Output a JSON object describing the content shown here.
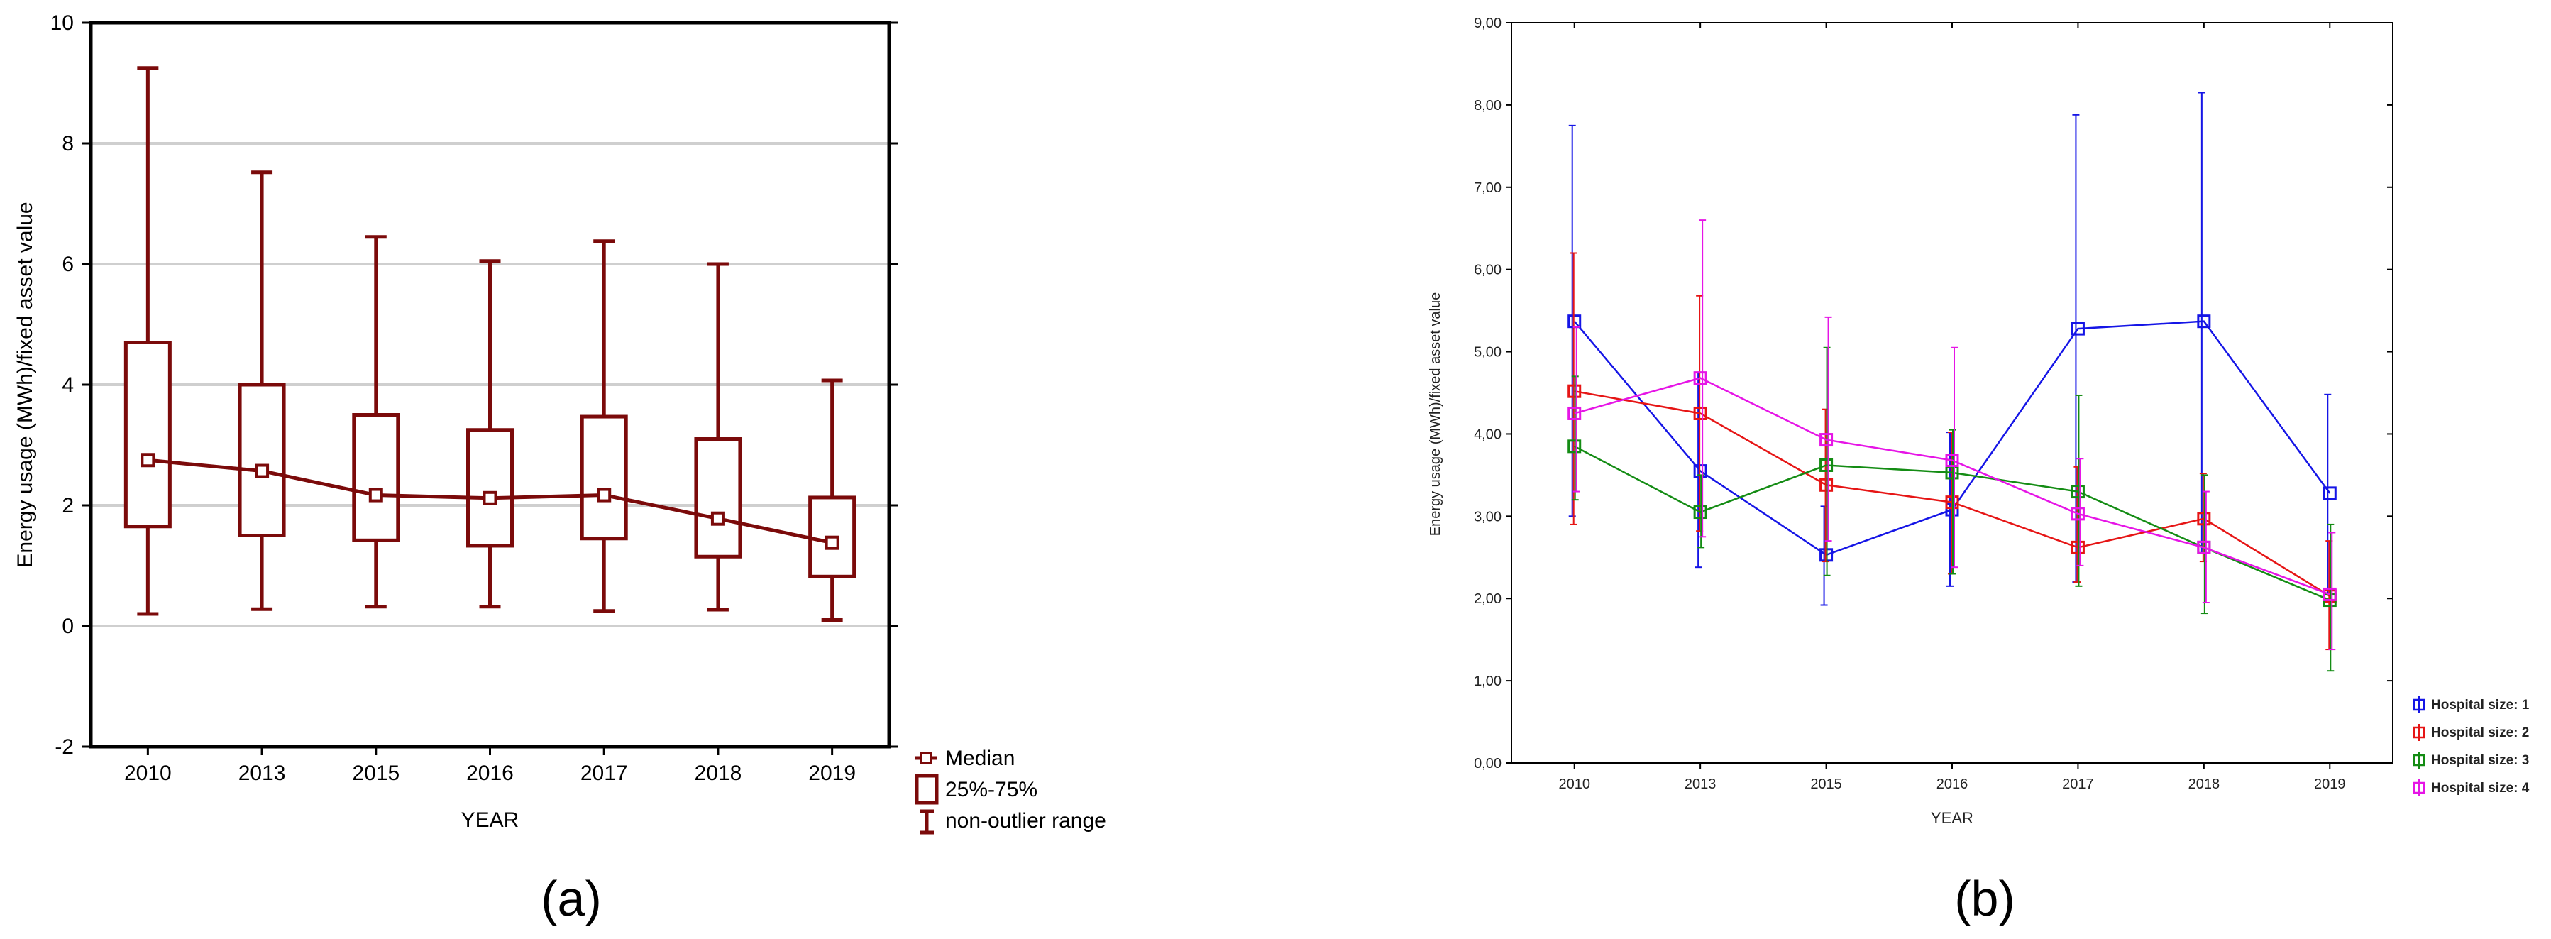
{
  "chart_data": [
    {
      "type": "box",
      "panel_label": "(a)",
      "title": "",
      "xlabel": "YEAR",
      "ylabel": "Energy usage (MWh)/fixed asset value",
      "ylim": [
        -2,
        10
      ],
      "yticks": [
        -2,
        0,
        2,
        4,
        6,
        8,
        10
      ],
      "ytick_labels": [
        "-2",
        "0",
        "2",
        "4",
        "6",
        "8",
        "10"
      ],
      "grid": true,
      "categories": [
        "2010",
        "2013",
        "2015",
        "2016",
        "2017",
        "2018",
        "2019"
      ],
      "median": [
        2.75,
        2.57,
        2.17,
        2.12,
        2.17,
        1.78,
        1.38
      ],
      "q1": [
        1.65,
        1.5,
        1.42,
        1.33,
        1.45,
        1.15,
        0.82
      ],
      "q3": [
        4.7,
        4.0,
        3.5,
        3.25,
        3.47,
        3.1,
        2.13
      ],
      "whisker_low": [
        0.2,
        0.28,
        0.32,
        0.32,
        0.25,
        0.27,
        0.1
      ],
      "whisker_high": [
        9.25,
        7.52,
        6.45,
        6.05,
        6.38,
        6.0,
        4.07
      ],
      "color": "#7B0A0A",
      "legend": {
        "position": "right-bottom",
        "entries": [
          "Median",
          "25%-75%",
          "non-outlier range"
        ]
      }
    },
    {
      "type": "line",
      "panel_label": "(b)",
      "title": "",
      "xlabel": "YEAR",
      "ylabel": "Energy usage (MWh)/fixed asset value",
      "ylim": [
        0,
        9
      ],
      "yticks": [
        0,
        1,
        2,
        3,
        4,
        5,
        6,
        7,
        8,
        9
      ],
      "ytick_labels": [
        "0,00",
        "1,00",
        "2,00",
        "3,00",
        "4,00",
        "5,00",
        "6,00",
        "7,00",
        "8,00",
        "9,00"
      ],
      "grid": false,
      "categories": [
        "2010",
        "2013",
        "2015",
        "2016",
        "2017",
        "2018",
        "2019"
      ],
      "legend": {
        "position": "right-bottom"
      },
      "series": [
        {
          "name": "Hospital size: 1",
          "color": "#1515E6",
          "values": [
            5.37,
            3.55,
            2.53,
            3.08,
            5.28,
            5.37,
            3.28
          ],
          "err_low": [
            3.0,
            2.38,
            1.92,
            2.15,
            2.2,
            2.55,
            2.05
          ],
          "err_high": [
            7.75,
            4.75,
            3.12,
            4.02,
            7.88,
            8.15,
            4.48
          ]
        },
        {
          "name": "Hospital size: 2",
          "color": "#E61515",
          "values": [
            4.52,
            4.25,
            3.38,
            3.17,
            2.62,
            2.97,
            2.03
          ],
          "err_low": [
            2.9,
            2.82,
            2.45,
            2.3,
            2.2,
            2.45,
            1.38
          ],
          "err_high": [
            6.2,
            5.68,
            4.3,
            4.02,
            3.6,
            3.52,
            2.7
          ]
        },
        {
          "name": "Hospital size: 3",
          "color": "#148C14",
          "values": [
            3.85,
            3.05,
            3.62,
            3.53,
            3.3,
            2.62,
            1.98
          ],
          "err_low": [
            3.2,
            2.62,
            2.28,
            2.3,
            2.15,
            1.82,
            1.12
          ],
          "err_high": [
            4.7,
            3.5,
            5.05,
            4.05,
            4.47,
            3.5,
            2.9
          ]
        },
        {
          "name": "Hospital size: 4",
          "color": "#E615E6",
          "values": [
            4.25,
            4.68,
            3.93,
            3.68,
            3.03,
            2.62,
            2.05
          ],
          "err_low": [
            3.3,
            2.75,
            2.7,
            2.38,
            2.4,
            1.95,
            1.38
          ],
          "err_high": [
            5.3,
            6.6,
            5.42,
            5.05,
            3.7,
            3.3,
            2.8
          ]
        }
      ]
    }
  ]
}
